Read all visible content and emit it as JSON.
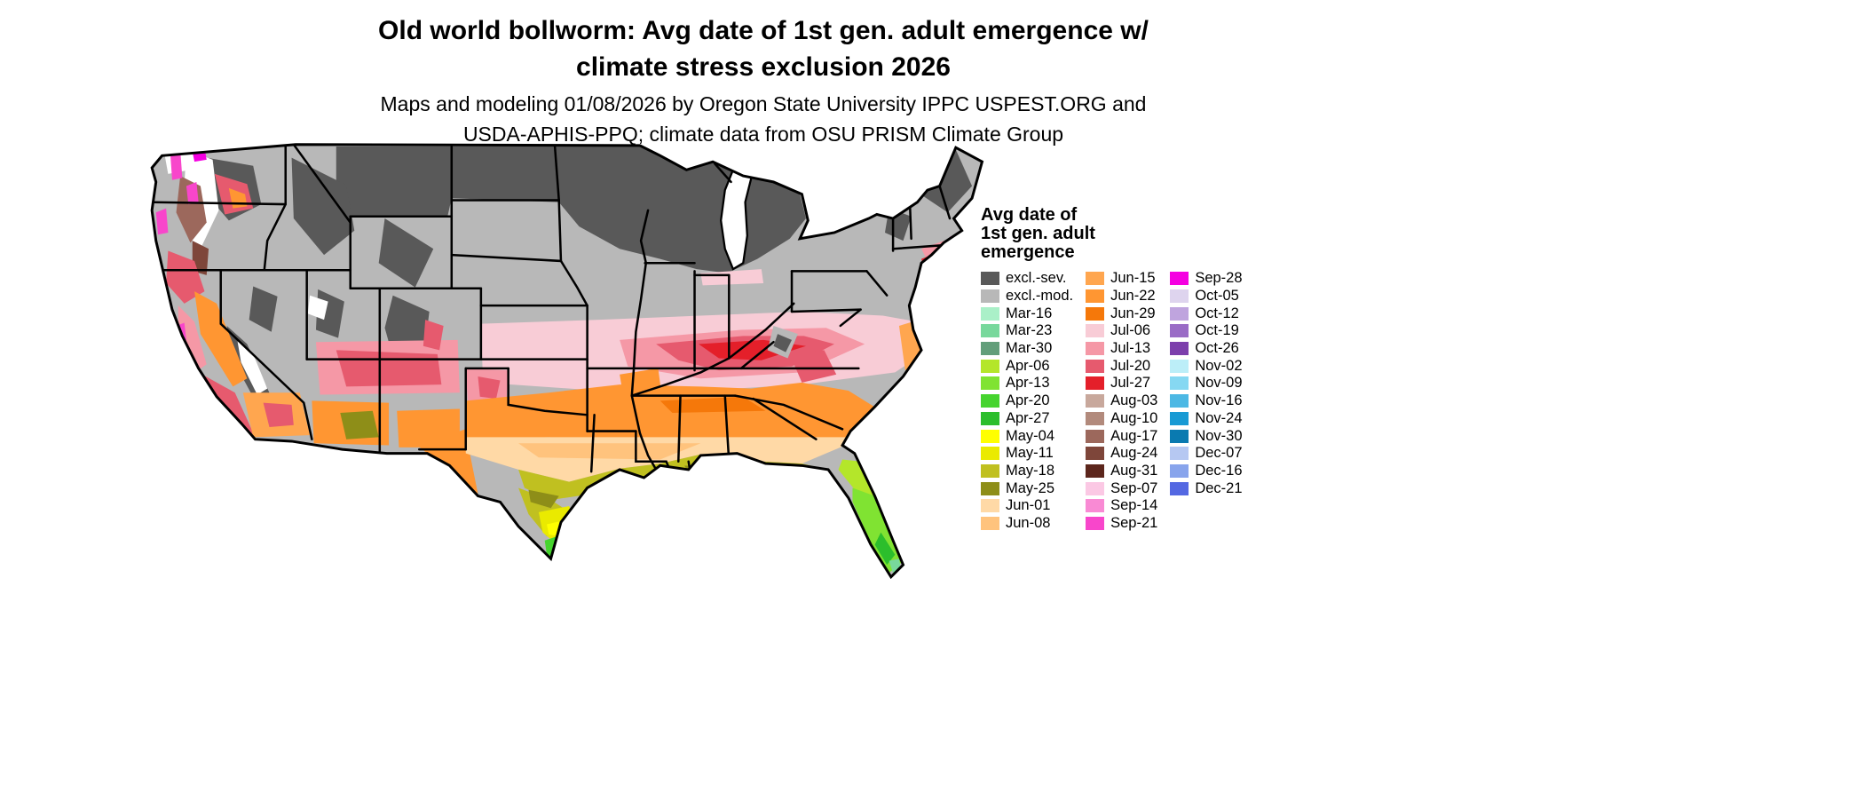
{
  "title": {
    "line1": "Old world bollworm: Avg date of 1st gen. adult emergence w/",
    "line2": "climate stress exclusion 2026"
  },
  "subtitle": {
    "line1": "Maps and modeling 01/08/2026 by Oregon State University IPPC USPEST.ORG and",
    "line2": "USDA-APHIS-PPQ; climate data from OSU PRISM Climate Group"
  },
  "legend": {
    "title_lines": [
      "Avg date of",
      "1st gen. adult",
      "emergence"
    ],
    "columns": [
      [
        {
          "label": "excl.-sev.",
          "color": "#595959"
        },
        {
          "label": "excl.-mod.",
          "color": "#b8b8b8"
        },
        {
          "label": "Mar-16",
          "color": "#aaf0c8"
        },
        {
          "label": "Mar-23",
          "color": "#78d89c"
        },
        {
          "label": "Mar-30",
          "color": "#629e7a"
        },
        {
          "label": "Apr-06",
          "color": "#b4e62a"
        },
        {
          "label": "Apr-13",
          "color": "#80e332"
        },
        {
          "label": "Apr-20",
          "color": "#46d42e"
        },
        {
          "label": "Apr-27",
          "color": "#2cbe2c"
        },
        {
          "label": "May-04",
          "color": "#ffff00"
        },
        {
          "label": "May-11",
          "color": "#eaea00"
        },
        {
          "label": "May-18",
          "color": "#c0c020"
        },
        {
          "label": "May-25",
          "color": "#8e8e18"
        },
        {
          "label": "Jun-01",
          "color": "#ffd9a6"
        },
        {
          "label": "Jun-08",
          "color": "#ffc37d"
        }
      ],
      [
        {
          "label": "Jun-15",
          "color": "#ffa64f"
        },
        {
          "label": "Jun-22",
          "color": "#ff9632"
        },
        {
          "label": "Jun-29",
          "color": "#f5780a"
        },
        {
          "label": "Jul-06",
          "color": "#f8ccd6"
        },
        {
          "label": "Jul-13",
          "color": "#f598a6"
        },
        {
          "label": "Jul-20",
          "color": "#e65a6e"
        },
        {
          "label": "Jul-27",
          "color": "#e41f2a"
        },
        {
          "label": "Aug-03",
          "color": "#c8a89c"
        },
        {
          "label": "Aug-10",
          "color": "#b28a7c"
        },
        {
          "label": "Aug-17",
          "color": "#9c685c"
        },
        {
          "label": "Aug-24",
          "color": "#7e463a"
        },
        {
          "label": "Aug-31",
          "color": "#5c261c"
        },
        {
          "label": "Sep-07",
          "color": "#fbc8e4"
        },
        {
          "label": "Sep-14",
          "color": "#f98ad4"
        },
        {
          "label": "Sep-21",
          "color": "#f846cb"
        }
      ],
      [
        {
          "label": "Sep-28",
          "color": "#f500e1"
        },
        {
          "label": "Oct-05",
          "color": "#ded4ee"
        },
        {
          "label": "Oct-12",
          "color": "#bfa4de"
        },
        {
          "label": "Oct-19",
          "color": "#9a6cc6"
        },
        {
          "label": "Oct-26",
          "color": "#7c3fac"
        },
        {
          "label": "Nov-02",
          "color": "#bceef8"
        },
        {
          "label": "Nov-09",
          "color": "#86d8f2"
        },
        {
          "label": "Nov-16",
          "color": "#4cb8e4"
        },
        {
          "label": "Nov-24",
          "color": "#189ad4"
        },
        {
          "label": "Nov-30",
          "color": "#0a7ab0"
        },
        {
          "label": "Dec-07",
          "color": "#b6c8f2"
        },
        {
          "label": "Dec-16",
          "color": "#88a4ec"
        },
        {
          "label": "Dec-21",
          "color": "#5468e2"
        }
      ]
    ]
  },
  "map": {
    "region": "Contiguous United States",
    "border_color": "#000000",
    "no_data_color": "#ffffff"
  }
}
